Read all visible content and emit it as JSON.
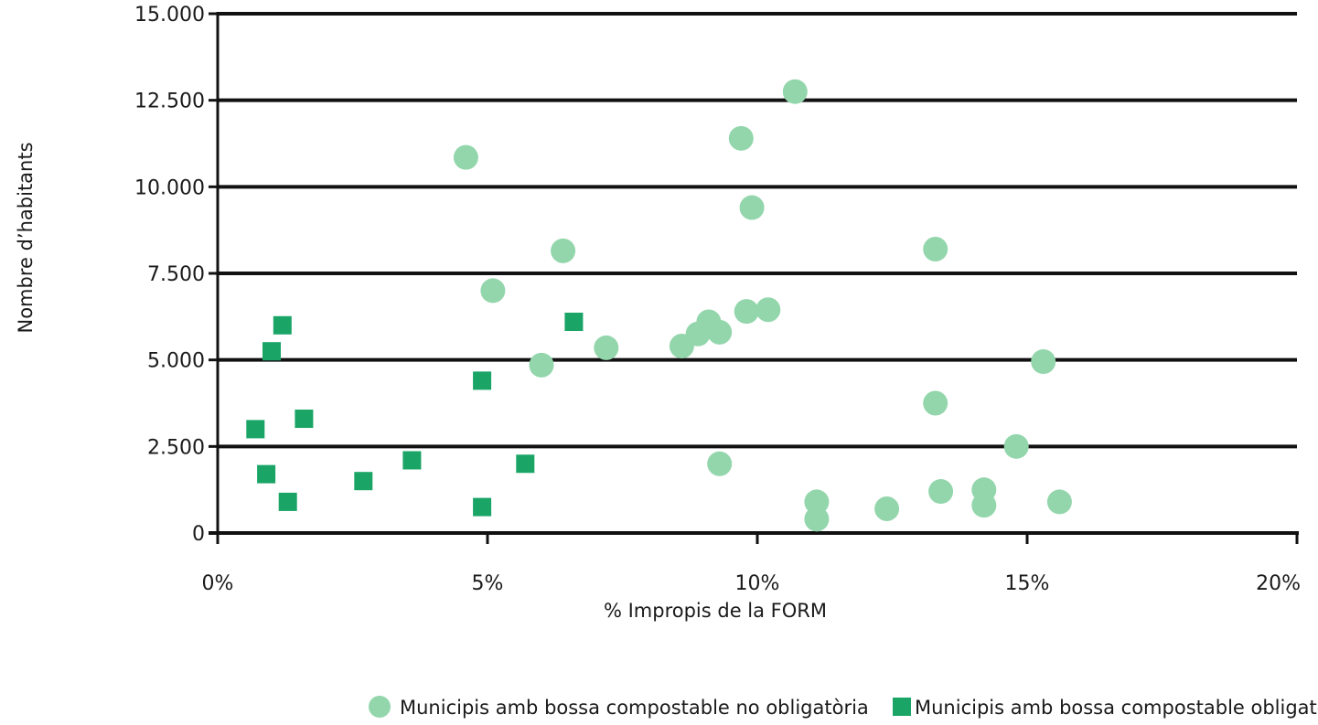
{
  "chart_data": {
    "type": "scatter",
    "xlabel": "% Impropis de la FORM",
    "ylabel": "Nombre d’habitants",
    "xlim": [
      0,
      20
    ],
    "ylim": [
      0,
      15000
    ],
    "x_ticks": [
      0,
      5,
      10,
      15,
      20
    ],
    "x_tick_labels": [
      "0%",
      "5%",
      "10%",
      "15%",
      "20%"
    ],
    "y_ticks": [
      0,
      2500,
      5000,
      7500,
      10000,
      12500,
      15000
    ],
    "y_tick_labels": [
      "0",
      "2.500",
      "5.000",
      "7.500",
      "10.000",
      "12.500",
      "15.000"
    ],
    "grid": "horizontal",
    "legend_position": "bottom",
    "series": [
      {
        "name": "Municipis amb bossa compostable no obligatòria",
        "marker": "circle",
        "color": "#93d6ac",
        "points": [
          {
            "x": 4.6,
            "y": 10850
          },
          {
            "x": 5.1,
            "y": 7000
          },
          {
            "x": 6.0,
            "y": 4850
          },
          {
            "x": 6.4,
            "y": 8150
          },
          {
            "x": 7.2,
            "y": 5350
          },
          {
            "x": 8.6,
            "y": 5400
          },
          {
            "x": 8.9,
            "y": 5750
          },
          {
            "x": 9.1,
            "y": 6100
          },
          {
            "x": 9.3,
            "y": 5800
          },
          {
            "x": 9.3,
            "y": 2000
          },
          {
            "x": 9.7,
            "y": 11400
          },
          {
            "x": 9.8,
            "y": 6400
          },
          {
            "x": 9.9,
            "y": 9400
          },
          {
            "x": 10.2,
            "y": 6450
          },
          {
            "x": 10.7,
            "y": 12750
          },
          {
            "x": 11.1,
            "y": 900
          },
          {
            "x": 11.1,
            "y": 400
          },
          {
            "x": 12.4,
            "y": 700
          },
          {
            "x": 13.3,
            "y": 8200
          },
          {
            "x": 13.3,
            "y": 3750
          },
          {
            "x": 13.4,
            "y": 1200
          },
          {
            "x": 14.2,
            "y": 1250
          },
          {
            "x": 14.2,
            "y": 800
          },
          {
            "x": 14.8,
            "y": 2500
          },
          {
            "x": 15.3,
            "y": 4950
          },
          {
            "x": 15.6,
            "y": 900
          }
        ]
      },
      {
        "name": "Municipis amb bossa compostable obligatòria",
        "marker": "square",
        "color": "#1aa567",
        "points": [
          {
            "x": 0.7,
            "y": 3000
          },
          {
            "x": 0.9,
            "y": 1700
          },
          {
            "x": 1.0,
            "y": 5250
          },
          {
            "x": 1.2,
            "y": 6000
          },
          {
            "x": 1.3,
            "y": 900
          },
          {
            "x": 1.6,
            "y": 3300
          },
          {
            "x": 2.7,
            "y": 1500
          },
          {
            "x": 3.6,
            "y": 2100
          },
          {
            "x": 4.9,
            "y": 4400
          },
          {
            "x": 4.9,
            "y": 750
          },
          {
            "x": 5.7,
            "y": 2000
          },
          {
            "x": 6.6,
            "y": 6100
          }
        ]
      }
    ]
  }
}
